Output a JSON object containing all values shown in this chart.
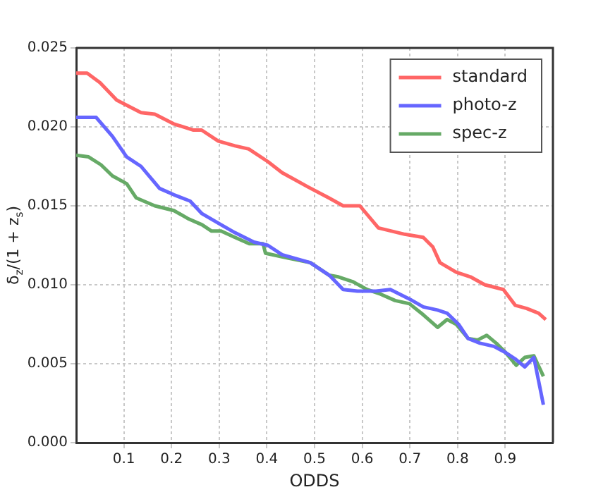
{
  "chart_data": {
    "type": "line",
    "xlabel": "ODDS",
    "ylabel": "δ$_{z}$/(1 + z$_{s}$)",
    "xlim": [
      0,
      1
    ],
    "xticks": [
      0.1,
      0.2,
      0.3,
      0.4,
      0.5,
      0.6,
      0.7,
      0.8,
      0.9
    ],
    "ylim": [
      0,
      0.025
    ],
    "yticks": [
      {
        "value": 0,
        "label": "0.000"
      },
      {
        "value": 0.005,
        "label": "0.005"
      },
      {
        "value": 0.01,
        "label": "0.010"
      },
      {
        "value": 0.015,
        "label": "0.015"
      },
      {
        "value": 0.02,
        "label": "0.020"
      },
      {
        "value": 0.025,
        "label": "0.025"
      }
    ],
    "grid": true,
    "legend": "top right",
    "marker": "none",
    "line_style": "solid",
    "series": [
      {
        "name": "standard",
        "color": "#ff6666",
        "x": [
          0,
          0.023,
          0.05,
          0.085,
          0.136,
          0.165,
          0.204,
          0.245,
          0.263,
          0.298,
          0.333,
          0.362,
          0.402,
          0.432,
          0.486,
          0.53,
          0.56,
          0.595,
          0.634,
          0.689,
          0.728,
          0.748,
          0.763,
          0.797,
          0.827,
          0.857,
          0.896,
          0.921,
          0.945,
          0.97,
          0.985
        ],
        "values": [
          0.0234,
          0.0234,
          0.0228,
          0.0217,
          0.0209,
          0.0208,
          0.0202,
          0.0198,
          0.0198,
          0.0191,
          0.0188,
          0.0186,
          0.0178,
          0.0171,
          0.0162,
          0.0155,
          0.015,
          0.015,
          0.0136,
          0.0132,
          0.013,
          0.0124,
          0.0114,
          0.0108,
          0.0105,
          0.01,
          0.0097,
          0.0087,
          0.0085,
          0.0082,
          0.0078
        ]
      },
      {
        "name": "photo-z",
        "color": "#6666ff",
        "x": [
          0,
          0.042,
          0.076,
          0.106,
          0.136,
          0.175,
          0.205,
          0.239,
          0.264,
          0.304,
          0.333,
          0.373,
          0.402,
          0.432,
          0.491,
          0.531,
          0.56,
          0.59,
          0.629,
          0.659,
          0.699,
          0.728,
          0.758,
          0.778,
          0.802,
          0.822,
          0.847,
          0.876,
          0.901,
          0.921,
          0.941,
          0.96,
          0.98
        ],
        "values": [
          0.0206,
          0.0206,
          0.0194,
          0.0181,
          0.0175,
          0.0161,
          0.0157,
          0.0153,
          0.0145,
          0.0138,
          0.0133,
          0.0127,
          0.0125,
          0.0119,
          0.0114,
          0.0106,
          0.0097,
          0.0096,
          0.0096,
          0.0097,
          0.0091,
          0.0086,
          0.0084,
          0.0082,
          0.0075,
          0.0066,
          0.0063,
          0.0061,
          0.0057,
          0.0053,
          0.0048,
          0.0054,
          0.0024
        ]
      },
      {
        "name": "spec-z",
        "color": "#66aa66",
        "x": [
          0,
          0.026,
          0.052,
          0.076,
          0.106,
          0.126,
          0.165,
          0.205,
          0.234,
          0.264,
          0.284,
          0.304,
          0.333,
          0.363,
          0.392,
          0.397,
          0.442,
          0.491,
          0.531,
          0.55,
          0.58,
          0.61,
          0.639,
          0.669,
          0.699,
          0.728,
          0.758,
          0.778,
          0.797,
          0.822,
          0.842,
          0.861,
          0.881,
          0.901,
          0.923,
          0.941,
          0.96,
          0.98
        ],
        "values": [
          0.0182,
          0.0181,
          0.0176,
          0.0169,
          0.0164,
          0.0155,
          0.015,
          0.0147,
          0.0142,
          0.0138,
          0.0134,
          0.0134,
          0.013,
          0.0126,
          0.0126,
          0.012,
          0.0117,
          0.0114,
          0.0106,
          0.0105,
          0.0102,
          0.0097,
          0.0094,
          0.009,
          0.0088,
          0.0081,
          0.0073,
          0.0078,
          0.0075,
          0.0066,
          0.0065,
          0.0068,
          0.0063,
          0.0057,
          0.0049,
          0.0054,
          0.0055,
          0.0042
        ]
      }
    ]
  }
}
